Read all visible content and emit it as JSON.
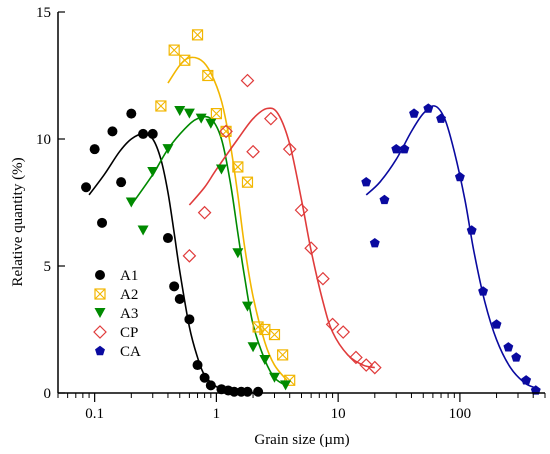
{
  "chart_data": {
    "type": "scatter",
    "title": "",
    "xlabel": "Grain size (µm)",
    "ylabel": "Relative quantity (%)",
    "x_scale": "log",
    "xlim": [
      0.05,
      500
    ],
    "ylim": [
      0,
      15
    ],
    "x_ticks": [
      0.1,
      1,
      10,
      100
    ],
    "x_tick_labels": [
      "0.1",
      "1",
      "10",
      "100"
    ],
    "y_ticks": [
      0,
      5,
      10,
      15
    ],
    "y_tick_labels": [
      "0",
      "5",
      "10",
      "15"
    ],
    "grid": false,
    "legend_position": "lower-left",
    "series": [
      {
        "name": "A1",
        "color": "#000000",
        "marker": "filled-circle",
        "points": [
          [
            0.085,
            8.1
          ],
          [
            0.1,
            9.6
          ],
          [
            0.115,
            6.7
          ],
          [
            0.14,
            10.3
          ],
          [
            0.165,
            8.3
          ],
          [
            0.2,
            11.0
          ],
          [
            0.25,
            10.2
          ],
          [
            0.3,
            10.2
          ],
          [
            0.4,
            6.1
          ],
          [
            0.45,
            4.2
          ],
          [
            0.5,
            3.7
          ],
          [
            0.6,
            2.9
          ],
          [
            0.7,
            1.1
          ],
          [
            0.8,
            0.6
          ],
          [
            0.9,
            0.3
          ],
          [
            1.1,
            0.15
          ],
          [
            1.25,
            0.1
          ],
          [
            1.4,
            0.05
          ],
          [
            1.6,
            0.05
          ],
          [
            1.8,
            0.05
          ],
          [
            2.2,
            0.05
          ]
        ],
        "fit": [
          [
            0.09,
            7.8
          ],
          [
            0.12,
            8.6
          ],
          [
            0.16,
            9.5
          ],
          [
            0.2,
            10.0
          ],
          [
            0.25,
            10.2
          ],
          [
            0.3,
            10.0
          ],
          [
            0.35,
            9.2
          ],
          [
            0.4,
            7.9
          ],
          [
            0.45,
            6.3
          ],
          [
            0.5,
            4.8
          ],
          [
            0.6,
            2.6
          ],
          [
            0.7,
            1.4
          ],
          [
            0.8,
            0.7
          ],
          [
            1.0,
            0.25
          ],
          [
            1.3,
            0.08
          ],
          [
            2.0,
            0.02
          ]
        ]
      },
      {
        "name": "A2",
        "color": "#f2b600",
        "marker": "boxed-x",
        "points": [
          [
            0.35,
            11.3
          ],
          [
            0.45,
            13.5
          ],
          [
            0.55,
            13.1
          ],
          [
            0.7,
            14.1
          ],
          [
            0.85,
            12.5
          ],
          [
            1.0,
            11.0
          ],
          [
            1.2,
            10.3
          ],
          [
            1.5,
            8.9
          ],
          [
            1.8,
            8.3
          ],
          [
            2.2,
            2.6
          ],
          [
            2.5,
            2.5
          ],
          [
            3.0,
            2.3
          ],
          [
            3.5,
            1.5
          ],
          [
            4.0,
            0.5
          ]
        ],
        "fit": [
          [
            0.4,
            12.2
          ],
          [
            0.5,
            12.9
          ],
          [
            0.6,
            13.2
          ],
          [
            0.75,
            13.1
          ],
          [
            0.9,
            12.6
          ],
          [
            1.1,
            11.5
          ],
          [
            1.3,
            9.8
          ],
          [
            1.5,
            7.8
          ],
          [
            1.7,
            5.8
          ],
          [
            2.0,
            3.8
          ],
          [
            2.5,
            2.0
          ],
          [
            3.0,
            1.1
          ],
          [
            3.8,
            0.5
          ]
        ]
      },
      {
        "name": "A3",
        "color": "#008a00",
        "marker": "filled-triangle-down",
        "points": [
          [
            0.2,
            7.5
          ],
          [
            0.25,
            6.4
          ],
          [
            0.3,
            8.7
          ],
          [
            0.4,
            9.6
          ],
          [
            0.5,
            11.1
          ],
          [
            0.6,
            11.0
          ],
          [
            0.75,
            10.8
          ],
          [
            0.9,
            10.6
          ],
          [
            1.1,
            8.8
          ],
          [
            1.5,
            5.5
          ],
          [
            1.8,
            3.4
          ],
          [
            2.0,
            1.8
          ],
          [
            2.5,
            1.3
          ],
          [
            3.0,
            0.6
          ],
          [
            3.7,
            0.3
          ]
        ],
        "fit": [
          [
            0.2,
            7.4
          ],
          [
            0.3,
            8.6
          ],
          [
            0.4,
            9.6
          ],
          [
            0.55,
            10.4
          ],
          [
            0.7,
            10.8
          ],
          [
            0.9,
            10.8
          ],
          [
            1.1,
            10.0
          ],
          [
            1.3,
            8.3
          ],
          [
            1.5,
            6.3
          ],
          [
            1.7,
            4.6
          ],
          [
            2.0,
            2.7
          ],
          [
            2.5,
            1.3
          ],
          [
            3.0,
            0.6
          ],
          [
            3.7,
            0.3
          ]
        ]
      },
      {
        "name": "CP",
        "color": "#e03c3c",
        "marker": "open-diamond",
        "points": [
          [
            0.6,
            5.4
          ],
          [
            0.8,
            7.1
          ],
          [
            1.2,
            10.3
          ],
          [
            1.8,
            12.3
          ],
          [
            2.0,
            9.5
          ],
          [
            2.8,
            10.8
          ],
          [
            4.0,
            9.6
          ],
          [
            5.0,
            7.2
          ],
          [
            6.0,
            5.7
          ],
          [
            7.5,
            4.5
          ],
          [
            9.0,
            2.7
          ],
          [
            11.0,
            2.4
          ],
          [
            14.0,
            1.4
          ],
          [
            17.0,
            1.1
          ],
          [
            20.0,
            1.0
          ]
        ],
        "fit": [
          [
            0.6,
            7.4
          ],
          [
            0.8,
            8.1
          ],
          [
            1.0,
            8.8
          ],
          [
            1.5,
            10.0
          ],
          [
            2.0,
            10.8
          ],
          [
            2.6,
            11.2
          ],
          [
            3.2,
            11.0
          ],
          [
            4.0,
            9.8
          ],
          [
            5.0,
            7.6
          ],
          [
            6.0,
            5.6
          ],
          [
            7.5,
            3.6
          ],
          [
            9.0,
            2.4
          ],
          [
            12.0,
            1.5
          ],
          [
            16.0,
            1.1
          ],
          [
            20.0,
            1.0
          ]
        ]
      },
      {
        "name": "CA",
        "color": "#0a0aa0",
        "marker": "filled-pentagon",
        "points": [
          [
            17.0,
            8.3
          ],
          [
            20.0,
            5.9
          ],
          [
            24.0,
            7.6
          ],
          [
            30.0,
            9.6
          ],
          [
            35.0,
            9.6
          ],
          [
            42.0,
            11.0
          ],
          [
            55.0,
            11.2
          ],
          [
            70.0,
            10.8
          ],
          [
            100.0,
            8.5
          ],
          [
            125.0,
            6.4
          ],
          [
            155.0,
            4.0
          ],
          [
            200.0,
            2.7
          ],
          [
            250.0,
            1.8
          ],
          [
            290.0,
            1.4
          ],
          [
            350.0,
            0.5
          ],
          [
            420.0,
            0.1
          ]
        ],
        "fit": [
          [
            17.0,
            7.8
          ],
          [
            22.0,
            8.3
          ],
          [
            30.0,
            9.2
          ],
          [
            40.0,
            10.3
          ],
          [
            50.0,
            11.0
          ],
          [
            62.0,
            11.3
          ],
          [
            75.0,
            10.8
          ],
          [
            90.0,
            9.5
          ],
          [
            110.0,
            7.6
          ],
          [
            130.0,
            5.6
          ],
          [
            160.0,
            3.6
          ],
          [
            200.0,
            2.1
          ],
          [
            260.0,
            1.0
          ],
          [
            340.0,
            0.4
          ],
          [
            420.0,
            0.2
          ]
        ]
      }
    ]
  }
}
